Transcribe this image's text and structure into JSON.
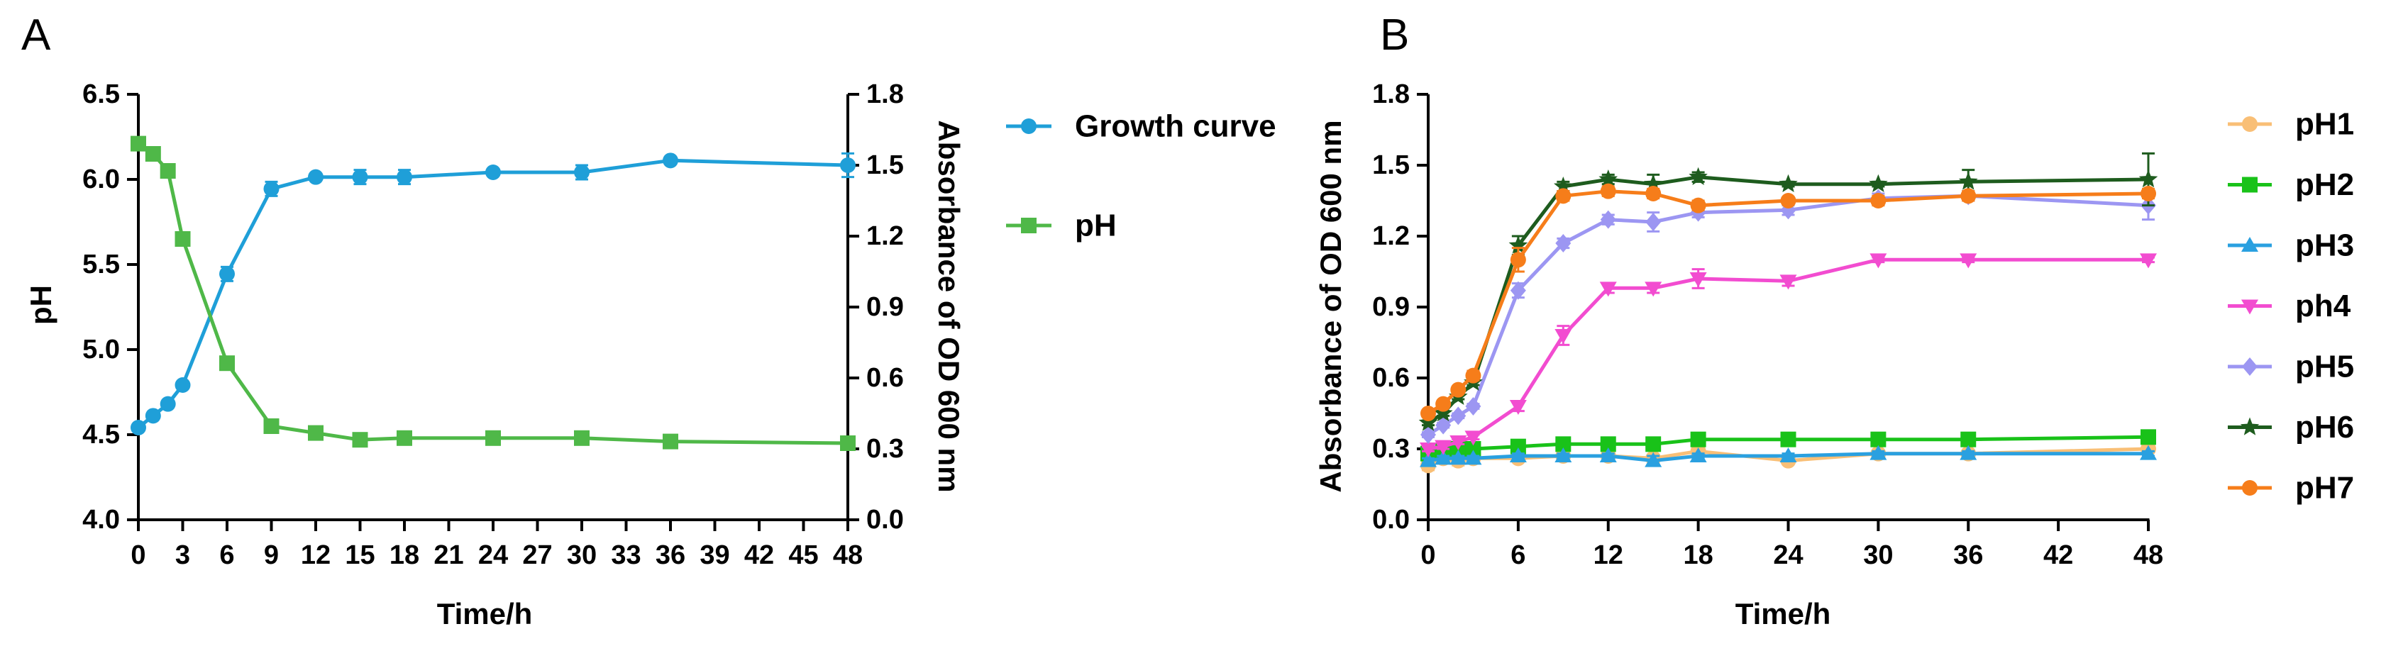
{
  "chart_data": [
    {
      "panel": "A",
      "type": "line",
      "xlabel": "Time/h",
      "ylabel_left": "pH",
      "ylabel_right": "Absorbance of OD 600 nm",
      "x_ticks": [
        0,
        3,
        6,
        9,
        12,
        15,
        18,
        21,
        24,
        27,
        30,
        33,
        36,
        39,
        42,
        45,
        48
      ],
      "x_tick_labels": [
        "0",
        "3",
        "6",
        "9",
        "12",
        "15",
        "18",
        "21",
        "24",
        "27",
        "30",
        "33",
        "36",
        "39",
        "42",
        "45",
        "48"
      ],
      "xlim": [
        0,
        48
      ],
      "y_left_ticks": [
        4.0,
        4.5,
        5.0,
        5.5,
        6.0,
        6.5
      ],
      "y_left_tick_labels": [
        "4.0",
        "4.5",
        "5.0",
        "5.5",
        "6.0",
        "6.5"
      ],
      "ylim_left": [
        4.0,
        6.5
      ],
      "y_right_ticks": [
        0.0,
        0.3,
        0.6,
        0.9,
        1.2,
        1.5,
        1.8
      ],
      "y_right_tick_labels": [
        "0.0",
        "0.3",
        "0.6",
        "0.9",
        "1.2",
        "1.5",
        "1.8"
      ],
      "ylim_right": [
        0.0,
        1.8
      ],
      "series": [
        {
          "name": "Growth curve",
          "axis": "right",
          "color": "#1f9fd8",
          "marker": "circle",
          "x": [
            0,
            1,
            2,
            3,
            6,
            9,
            12,
            15,
            18,
            24,
            30,
            36,
            48
          ],
          "y": [
            0.39,
            0.44,
            0.49,
            0.57,
            1.04,
            1.4,
            1.45,
            1.45,
            1.45,
            1.47,
            1.47,
            1.52,
            1.5
          ],
          "err": [
            0.01,
            0.01,
            0.01,
            0.01,
            0.03,
            0.03,
            0.01,
            0.03,
            0.03,
            0.01,
            0.03,
            0.01,
            0.05
          ]
        },
        {
          "name": "pH",
          "axis": "left",
          "color": "#4fb848",
          "marker": "square",
          "x": [
            0,
            1,
            2,
            3,
            6,
            9,
            12,
            15,
            18,
            24,
            30,
            36,
            48
          ],
          "y": [
            6.21,
            6.15,
            6.05,
            5.65,
            4.92,
            4.55,
            4.51,
            4.47,
            4.48,
            4.48,
            4.48,
            4.46,
            4.45
          ],
          "err": [
            0.01,
            0.01,
            0.01,
            0.01,
            0.01,
            0.01,
            0.01,
            0.01,
            0.01,
            0.01,
            0.01,
            0.01,
            0.01
          ]
        }
      ]
    },
    {
      "panel": "B",
      "type": "line",
      "xlabel": "Time/h",
      "ylabel": "Absorbance of OD 600 nm",
      "x_ticks": [
        0,
        6,
        12,
        18,
        24,
        30,
        36,
        42,
        48
      ],
      "x_tick_labels": [
        "0",
        "6",
        "12",
        "18",
        "24",
        "30",
        "36",
        "42",
        "48"
      ],
      "xlim": [
        0,
        48
      ],
      "y_ticks": [
        0.0,
        0.3,
        0.6,
        0.9,
        1.2,
        1.5,
        1.8
      ],
      "y_tick_labels": [
        "0.0",
        "0.3",
        "0.6",
        "0.9",
        "1.2",
        "1.5",
        "1.8"
      ],
      "ylim": [
        0.0,
        1.8
      ],
      "series": [
        {
          "name": "pH1",
          "color": "#f9bf76",
          "marker": "circle",
          "x": [
            0,
            1,
            2,
            3,
            6,
            9,
            12,
            15,
            18,
            24,
            30,
            36,
            48
          ],
          "y": [
            0.23,
            0.26,
            0.25,
            0.26,
            0.26,
            0.27,
            0.27,
            0.26,
            0.29,
            0.25,
            0.28,
            0.28,
            0.3
          ],
          "err": [
            0.02,
            0.02,
            0.02,
            0.01,
            0.01,
            0.01,
            0.01,
            0.01,
            0.02,
            0.01,
            0.01,
            0.01,
            0.01
          ]
        },
        {
          "name": "pH2",
          "color": "#19c219",
          "marker": "square",
          "x": [
            0,
            1,
            2,
            3,
            6,
            9,
            12,
            15,
            18,
            24,
            30,
            36,
            48
          ],
          "y": [
            0.28,
            0.29,
            0.3,
            0.3,
            0.31,
            0.32,
            0.32,
            0.32,
            0.34,
            0.34,
            0.34,
            0.34,
            0.35
          ],
          "err": [
            0.01,
            0.01,
            0.01,
            0.01,
            0.01,
            0.01,
            0.01,
            0.01,
            0.01,
            0.01,
            0.01,
            0.01,
            0.01
          ]
        },
        {
          "name": "pH3",
          "color": "#2aa0e0",
          "marker": "triangle",
          "x": [
            0,
            1,
            2,
            3,
            6,
            9,
            12,
            15,
            18,
            24,
            30,
            36,
            48
          ],
          "y": [
            0.25,
            0.26,
            0.26,
            0.26,
            0.27,
            0.27,
            0.27,
            0.25,
            0.27,
            0.27,
            0.28,
            0.28,
            0.28
          ],
          "err": [
            0.01,
            0.01,
            0.01,
            0.01,
            0.01,
            0.01,
            0.01,
            0.02,
            0.01,
            0.01,
            0.01,
            0.01,
            0.01
          ]
        },
        {
          "name": "ph4",
          "color": "#f24cd0",
          "marker": "triangle-down",
          "x": [
            0,
            1,
            2,
            3,
            6,
            9,
            12,
            15,
            18,
            24,
            30,
            36,
            48
          ],
          "y": [
            0.3,
            0.31,
            0.33,
            0.35,
            0.48,
            0.78,
            0.98,
            0.98,
            1.02,
            1.01,
            1.1,
            1.1,
            1.1
          ],
          "err": [
            0.01,
            0.01,
            0.01,
            0.01,
            0.02,
            0.04,
            0.02,
            0.02,
            0.04,
            0.02,
            0.01,
            0.01,
            0.01
          ]
        },
        {
          "name": "pH5",
          "color": "#9c96f2",
          "marker": "diamond",
          "x": [
            0,
            1,
            2,
            3,
            6,
            9,
            12,
            15,
            18,
            24,
            30,
            36,
            48
          ],
          "y": [
            0.36,
            0.4,
            0.44,
            0.48,
            0.97,
            1.17,
            1.27,
            1.26,
            1.3,
            1.31,
            1.36,
            1.37,
            1.33
          ],
          "err": [
            0.01,
            0.01,
            0.01,
            0.01,
            0.03,
            0.02,
            0.02,
            0.04,
            0.02,
            0.02,
            0.02,
            0.02,
            0.06
          ]
        },
        {
          "name": "pH6",
          "color": "#1e5c1e",
          "marker": "star",
          "x": [
            0,
            1,
            2,
            3,
            6,
            9,
            12,
            15,
            18,
            24,
            30,
            36,
            48
          ],
          "y": [
            0.41,
            0.45,
            0.52,
            0.58,
            1.16,
            1.41,
            1.44,
            1.42,
            1.45,
            1.42,
            1.42,
            1.43,
            1.44
          ],
          "err": [
            0.01,
            0.01,
            0.01,
            0.01,
            0.04,
            0.02,
            0.02,
            0.04,
            0.02,
            0.01,
            0.01,
            0.05,
            0.11
          ]
        },
        {
          "name": "pH7",
          "color": "#f67d1a",
          "marker": "circle",
          "x": [
            0,
            1,
            2,
            3,
            6,
            9,
            12,
            15,
            18,
            24,
            30,
            36,
            48
          ],
          "y": [
            0.45,
            0.49,
            0.55,
            0.61,
            1.1,
            1.37,
            1.39,
            1.38,
            1.33,
            1.35,
            1.35,
            1.37,
            1.38
          ],
          "err": [
            0.01,
            0.01,
            0.01,
            0.02,
            0.05,
            0.02,
            0.02,
            0.02,
            0.02,
            0.01,
            0.02,
            0.02,
            0.02
          ]
        }
      ]
    }
  ]
}
